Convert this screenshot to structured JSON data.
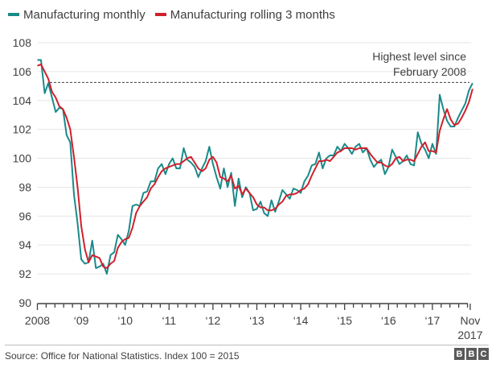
{
  "chart_data": {
    "type": "line",
    "title": "",
    "xlabel": "",
    "ylabel": "",
    "ylim": [
      90,
      108
    ],
    "yticks": [
      90,
      92,
      94,
      96,
      98,
      100,
      102,
      104,
      106,
      108
    ],
    "ytick_labels": [
      "90",
      "92",
      "94",
      "96",
      "98",
      "100",
      "102",
      "104",
      "106",
      "108"
    ],
    "x_start": "Jan 2008",
    "x_end": "Nov 2017",
    "xtick_labels": [
      "2008",
      "‘09",
      "‘10",
      "‘11",
      "‘12",
      "‘13",
      "‘14",
      "‘15",
      "‘16",
      "‘17",
      "Nov"
    ],
    "xtick_sublabel_last": "2017",
    "grid": true,
    "legend_position": "top-left",
    "reference_line": {
      "value": 105.25,
      "style": "dashed",
      "color": "#404040"
    },
    "annotation": [
      "Highest level since",
      "February 2008"
    ],
    "series": [
      {
        "name": "Manufacturing monthly",
        "color": "#1a8a8a",
        "values": [
          106.8,
          106.8,
          104.5,
          105.2,
          104.2,
          103.2,
          103.5,
          103.4,
          101.6,
          101.1,
          97.5,
          95.5,
          93.0,
          92.7,
          92.8,
          94.3,
          92.4,
          92.5,
          92.7,
          92.0,
          93.3,
          93.5,
          94.7,
          94.4,
          94.0,
          95.0,
          96.7,
          96.8,
          96.7,
          97.6,
          97.7,
          98.4,
          98.4,
          99.3,
          99.6,
          98.9,
          99.6,
          100.0,
          99.3,
          99.3,
          100.7,
          99.9,
          99.7,
          99.4,
          98.7,
          99.3,
          99.8,
          100.8,
          99.6,
          98.7,
          97.9,
          99.3,
          98.0,
          99.0,
          96.7,
          98.6,
          97.3,
          98.0,
          97.6,
          96.4,
          96.5,
          97.0,
          96.2,
          96.0,
          97.1,
          96.3,
          97.0,
          97.8,
          97.5,
          97.2,
          97.9,
          97.8,
          97.6,
          98.4,
          98.8,
          99.5,
          99.6,
          100.4,
          99.3,
          100.0,
          100.2,
          100.2,
          100.8,
          100.5,
          101.0,
          100.7,
          100.3,
          100.8,
          101.0,
          100.4,
          100.7,
          99.9,
          99.4,
          99.7,
          99.9,
          98.9,
          99.4,
          100.6,
          100.1,
          99.6,
          99.8,
          100.2,
          99.6,
          99.5,
          101.8,
          101.0,
          100.6,
          100.0,
          101.0,
          100.3,
          104.4,
          103.4,
          102.6,
          102.2,
          102.2,
          102.8,
          103.3,
          103.8,
          104.7,
          105.2
        ]
      },
      {
        "name": "Manufacturing rolling 3 months",
        "color": "#d1202b",
        "values": [
          106.4,
          106.5,
          106.0,
          105.5,
          104.6,
          104.2,
          103.6,
          103.4,
          102.8,
          102.0,
          100.1,
          98.0,
          95.3,
          93.7,
          92.8,
          93.3,
          93.2,
          93.1,
          92.5,
          92.4,
          92.7,
          92.9,
          93.8,
          94.2,
          94.4,
          94.5,
          95.2,
          96.2,
          96.7,
          97.0,
          97.3,
          97.9,
          98.2,
          98.7,
          99.1,
          99.3,
          99.4,
          99.5,
          99.6,
          99.6,
          99.8,
          100.0,
          100.1,
          99.7,
          99.3,
          99.1,
          99.3,
          99.9,
          100.1,
          99.7,
          98.7,
          98.6,
          98.4,
          98.8,
          97.9,
          98.1,
          97.5,
          97.9,
          97.6,
          97.3,
          96.8,
          96.6,
          96.6,
          96.4,
          96.4,
          96.5,
          96.8,
          97.0,
          97.4,
          97.5,
          97.5,
          97.6,
          97.8,
          97.9,
          98.2,
          98.8,
          99.3,
          99.8,
          99.8,
          99.9,
          99.8,
          100.1,
          100.4,
          100.5,
          100.7,
          100.7,
          100.7,
          100.6,
          100.7,
          100.7,
          100.7,
          100.3,
          100.0,
          99.7,
          99.7,
          99.5,
          99.4,
          99.6,
          100.0,
          100.1,
          99.8,
          99.9,
          99.9,
          99.8,
          100.3,
          100.8,
          101.1,
          100.5,
          100.5,
          100.4,
          101.9,
          102.7,
          103.4,
          102.7,
          102.3,
          102.4,
          102.8,
          103.3,
          103.9,
          104.8
        ]
      }
    ]
  },
  "legend": {
    "items": [
      {
        "label": "Manufacturing monthly",
        "color": "#1a8a8a"
      },
      {
        "label": "Manufacturing rolling 3 months",
        "color": "#d1202b"
      }
    ]
  },
  "footer": {
    "source": "Source: Office for National Statistics. Index 100 = 2015",
    "logo_letters": [
      "B",
      "B",
      "C"
    ]
  }
}
